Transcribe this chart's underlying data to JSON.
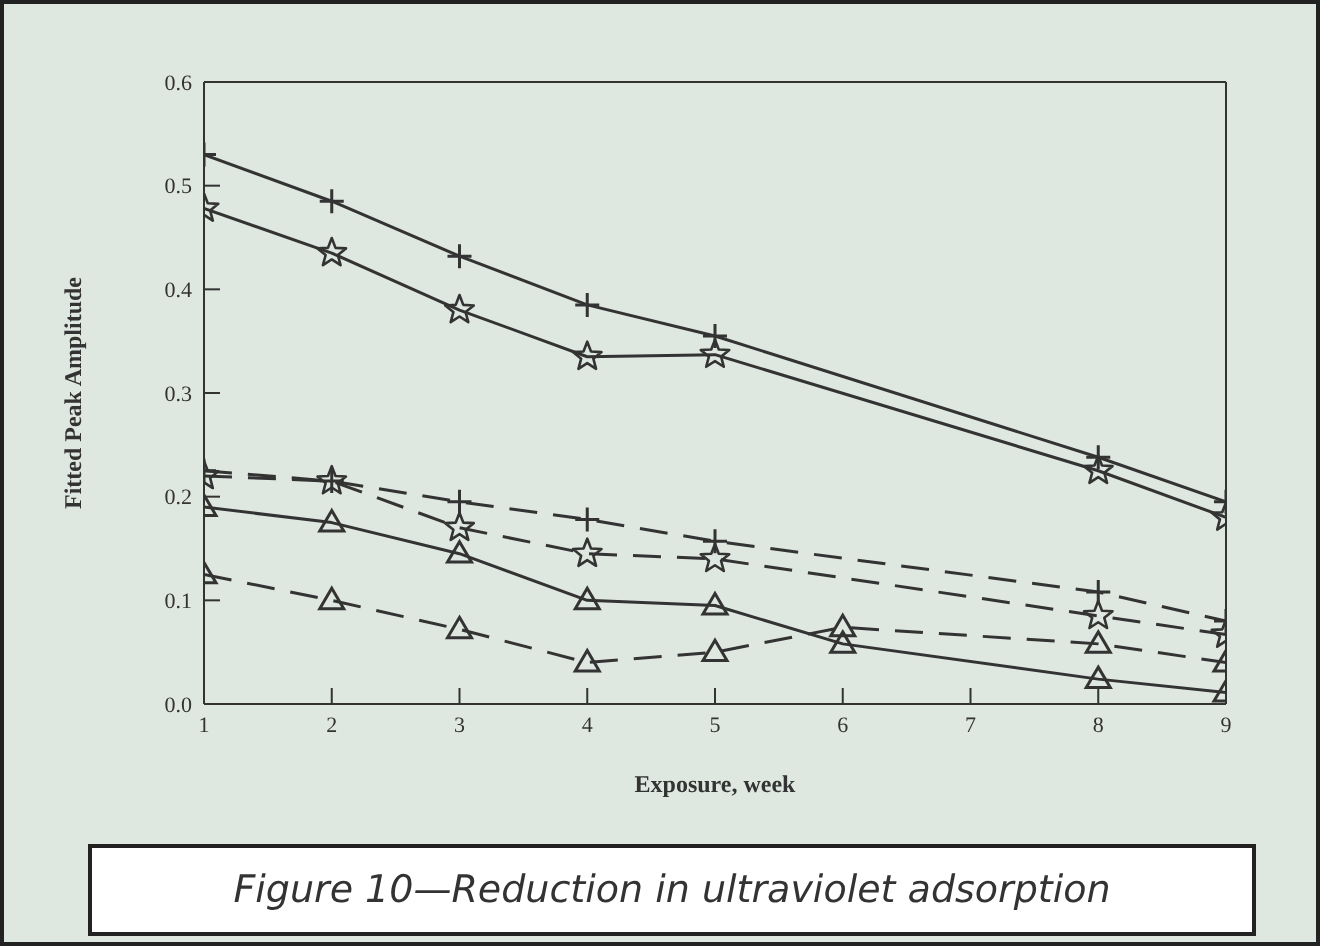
{
  "chart_data": {
    "type": "line",
    "xlabel": "Exposure, week",
    "ylabel": "Fitted Peak Amplitude",
    "annotations": [
      "Figure 10—Reduction in ultraviolet adsorption"
    ],
    "x": [
      1,
      2,
      3,
      4,
      5,
      8,
      9
    ],
    "series": [
      {
        "color": "#333333",
        "marker": "cross",
        "line_style": "solid",
        "values": [
          0.53,
          0.485,
          0.432,
          0.385,
          0.355,
          0.238,
          0.195
        ]
      },
      {
        "color": "#333333",
        "marker": "star",
        "line_style": "solid",
        "values": [
          0.478,
          0.435,
          0.38,
          0.335,
          0.337,
          0.225,
          0.18
        ]
      },
      {
        "color": "#333333",
        "marker": "cross",
        "line_style": "dashed",
        "values": [
          0.225,
          0.215,
          0.195,
          0.178,
          0.157,
          0.108,
          0.08
        ]
      },
      {
        "color": "#333333",
        "marker": "star",
        "line_style": "dashed",
        "values": [
          0.22,
          0.215,
          0.17,
          0.145,
          0.14,
          0.085,
          0.067
        ]
      },
      {
        "color": "#333333",
        "marker": "triangle",
        "line_style": "solid",
        "x": [
          1,
          2,
          3,
          4,
          5,
          6,
          8,
          9
        ],
        "values": [
          0.19,
          0.175,
          0.145,
          0.1,
          0.095,
          0.058,
          0.024,
          0.011
        ]
      },
      {
        "color": "#333333",
        "marker": "triangle",
        "line_style": "dashed",
        "x": [
          1,
          2,
          3,
          4,
          5,
          6,
          8,
          9
        ],
        "values": [
          0.125,
          0.1,
          0.072,
          0.04,
          0.05,
          0.074,
          0.058,
          0.04
        ]
      }
    ],
    "xlim": [
      1,
      9
    ],
    "xticks": [
      1,
      2,
      3,
      4,
      5,
      6,
      7,
      8,
      9
    ],
    "ylim": [
      0,
      0.6
    ],
    "yticks": [
      {
        "value": 0,
        "label": "0.0"
      },
      {
        "value": 0.1,
        "label": "0.1"
      },
      {
        "value": 0.2,
        "label": "0.2"
      },
      {
        "value": 0.3,
        "label": "0.3"
      },
      {
        "value": 0.4,
        "label": "0.4"
      },
      {
        "value": 0.5,
        "label": "0.5"
      },
      {
        "value": 0.6,
        "label": "0.6"
      }
    ],
    "legend": false
  }
}
